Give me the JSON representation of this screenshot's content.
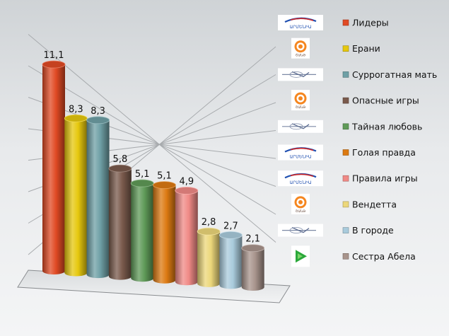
{
  "chart_data": {
    "type": "bar",
    "style": "3d-cylinder",
    "categories": [
      "Лидеры",
      "Ерани",
      "Суррогатная мать",
      "Опасные игры",
      "Тайная любовь",
      "Голая правда",
      "Правила игры",
      "Вендетта",
      "В городе",
      "Сестра Абела"
    ],
    "values": [
      11.1,
      8.3,
      8.3,
      5.8,
      5.1,
      5.1,
      4.9,
      2.8,
      2.7,
      2.1
    ],
    "value_labels": [
      "11,1",
      "8,3",
      "8,3",
      "5,8",
      "5,1",
      "5,1",
      "4,9",
      "2,8",
      "2,7",
      "2,1"
    ],
    "colors": [
      "#e04a24",
      "#e6c80e",
      "#6fa0a6",
      "#7a5a4c",
      "#5f9a58",
      "#dc7a12",
      "#f08a86",
      "#ecd77a",
      "#a9cbdc",
      "#a8948c"
    ],
    "channel_logos": [
      "armenia-tv-logo",
      "shant-tv-logo",
      "h1-tv-logo",
      "shant-tv-logo",
      "h1-tv-logo",
      "armenia-tv-logo",
      "armenia-tv-logo",
      "shant-tv-logo",
      "h1-tv-logo",
      "play-tv-logo"
    ],
    "ylim": [
      0,
      12
    ],
    "grid": true,
    "legend_position": "right",
    "title": "",
    "xlabel": "",
    "ylabel": ""
  },
  "logos": {
    "armenia": "ԱՐՄԵՆԻԱ",
    "shant": "ՇԱՆԹ"
  }
}
